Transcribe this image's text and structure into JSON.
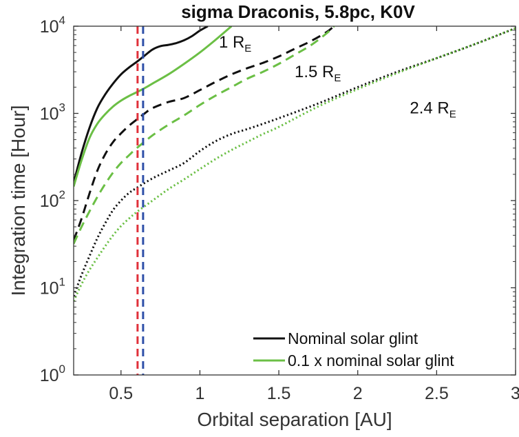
{
  "chart_data": {
    "type": "line",
    "title": "sigma Draconis, 5.8pc, K0V",
    "xlabel": "Orbital separation [AU]",
    "ylabel": "Integration time [Hour]",
    "xlim": [
      0.2,
      3
    ],
    "ylim": [
      1,
      10000
    ],
    "yscale": "log",
    "grid": false,
    "legend_position": "bottom-right",
    "x_ticks": [
      "0.5",
      "1",
      "1.5",
      "2",
      "2.5",
      "3"
    ],
    "y_ticks": [
      {
        "base": "10",
        "exp": "0",
        "value": 1
      },
      {
        "base": "10",
        "exp": "1",
        "value": 10
      },
      {
        "base": "10",
        "exp": "2",
        "value": 100
      },
      {
        "base": "10",
        "exp": "3",
        "value": 1000
      },
      {
        "base": "10",
        "exp": "4",
        "value": 10000
      }
    ],
    "legend": [
      {
        "label": "Nominal solar glint",
        "color": "#111111"
      },
      {
        "label": "0.1 x nominal solar glint",
        "color": "#6bbf45"
      }
    ],
    "annotations": [
      {
        "text": "1 R",
        "sub": "E",
        "x": 1.12,
        "y": 5700
      },
      {
        "text": "1.5 R",
        "sub": "E",
        "x": 1.6,
        "y": 2600
      },
      {
        "text": "2.4 R",
        "sub": "E",
        "x": 2.33,
        "y": 1000
      }
    ],
    "vlines": [
      {
        "x": 0.605,
        "color": "#e0303a"
      },
      {
        "x": 0.64,
        "color": "#2e4fa8"
      }
    ],
    "series": [
      {
        "radius": "1 R_E",
        "glint": "nominal",
        "color": "#111111",
        "dash": "solid",
        "x": [
          0.2,
          0.25,
          0.3,
          0.35,
          0.4,
          0.45,
          0.5,
          0.55,
          0.6,
          0.65,
          0.7,
          0.75,
          0.8,
          0.85,
          0.9,
          0.95,
          1.0,
          1.05
        ],
        "y": [
          160,
          350,
          680,
          1150,
          1650,
          2200,
          2800,
          3350,
          3900,
          4600,
          5400,
          5900,
          6100,
          6400,
          6900,
          7700,
          8900,
          10000
        ]
      },
      {
        "radius": "1 R_E",
        "glint": "0.1x",
        "color": "#6bbf45",
        "dash": "solid",
        "x": [
          0.2,
          0.25,
          0.3,
          0.35,
          0.4,
          0.45,
          0.5,
          0.55,
          0.6,
          0.65,
          0.7,
          0.8,
          0.9,
          1.0,
          1.1,
          1.2
        ],
        "y": [
          145,
          290,
          520,
          760,
          980,
          1200,
          1400,
          1580,
          1750,
          1950,
          2200,
          2800,
          3700,
          5000,
          7000,
          10000
        ]
      },
      {
        "radius": "1.5 R_E",
        "glint": "nominal",
        "color": "#111111",
        "dash": "dashed",
        "x": [
          0.2,
          0.25,
          0.3,
          0.35,
          0.4,
          0.45,
          0.5,
          0.55,
          0.6,
          0.65,
          0.7,
          0.8,
          0.9,
          1.0,
          1.1,
          1.2,
          1.3,
          1.4,
          1.5,
          1.6,
          1.7,
          1.8,
          1.85
        ],
        "y": [
          35,
          62,
          120,
          220,
          340,
          470,
          590,
          720,
          850,
          1000,
          1150,
          1350,
          1500,
          1850,
          2300,
          2800,
          3300,
          3800,
          4500,
          5500,
          6700,
          8500,
          10000
        ]
      },
      {
        "radius": "1.5 R_E",
        "glint": "0.1x",
        "color": "#6bbf45",
        "dash": "dashed",
        "x": [
          0.2,
          0.25,
          0.3,
          0.35,
          0.4,
          0.45,
          0.5,
          0.55,
          0.6,
          0.7,
          0.8,
          0.9,
          1.0,
          1.1,
          1.2,
          1.3,
          1.4,
          1.5,
          1.6,
          1.7,
          1.8,
          1.85
        ],
        "y": [
          32,
          50,
          75,
          110,
          155,
          210,
          270,
          330,
          400,
          560,
          740,
          950,
          1250,
          1600,
          2000,
          2500,
          3000,
          3700,
          4700,
          6000,
          8200,
          10000
        ]
      },
      {
        "radius": "2.4 R_E",
        "glint": "nominal",
        "color": "#111111",
        "dash": "dotted",
        "x": [
          0.2,
          0.25,
          0.3,
          0.35,
          0.4,
          0.45,
          0.5,
          0.55,
          0.6,
          0.7,
          0.8,
          0.9,
          1.0,
          1.1,
          1.2,
          1.3,
          1.4,
          1.5,
          1.75,
          2.0,
          2.25,
          2.5,
          2.75,
          3.0
        ],
        "y": [
          8,
          14,
          23,
          37,
          55,
          78,
          100,
          122,
          140,
          180,
          220,
          270,
          370,
          480,
          580,
          660,
          760,
          880,
          1300,
          2000,
          3000,
          4300,
          6300,
          9500
        ]
      },
      {
        "radius": "2.4 R_E",
        "glint": "0.1x",
        "color": "#6bbf45",
        "dash": "dotted",
        "x": [
          0.2,
          0.25,
          0.3,
          0.35,
          0.4,
          0.45,
          0.5,
          0.55,
          0.6,
          0.7,
          0.8,
          0.9,
          1.0,
          1.1,
          1.2,
          1.3,
          1.4,
          1.5,
          1.75,
          2.0,
          2.25,
          2.5,
          2.75,
          3.0
        ],
        "y": [
          7,
          11,
          16,
          22,
          30,
          40,
          51,
          62,
          74,
          100,
          135,
          175,
          230,
          300,
          380,
          470,
          580,
          700,
          1200,
          1900,
          2900,
          4300,
          6300,
          9500
        ]
      }
    ]
  }
}
